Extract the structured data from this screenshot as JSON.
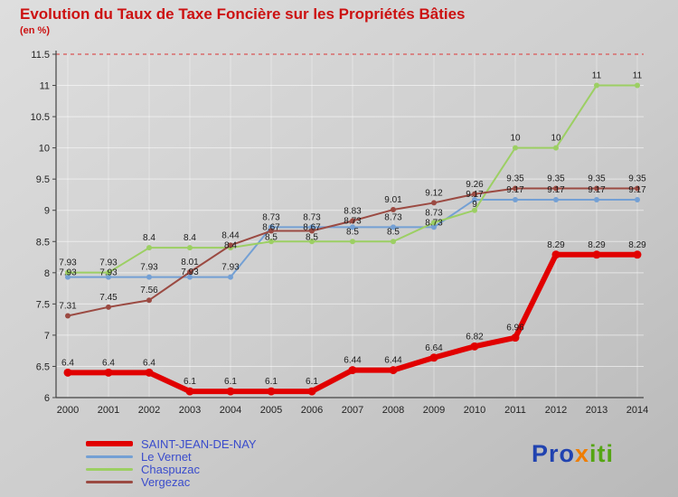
{
  "chart_data": {
    "type": "line",
    "title": "Evolution du Taux de Taxe Foncière sur les Propriétés Bâties",
    "subtitle": "(en %)",
    "x": [
      2000,
      2001,
      2002,
      2003,
      2004,
      2005,
      2006,
      2007,
      2008,
      2009,
      2010,
      2011,
      2012,
      2013,
      2014
    ],
    "ylim": [
      6,
      11.5
    ],
    "yticks": [
      6,
      6.5,
      7,
      7.5,
      8,
      8.5,
      9,
      9.5,
      10,
      10.5,
      11,
      11.5
    ],
    "grid": true,
    "legend_position": "bottom-left",
    "series": [
      {
        "name": "SAINT-JEAN-DE-NAY",
        "color": "#e10000",
        "thickness": 6,
        "values": [
          6.4,
          6.4,
          6.4,
          6.1,
          6.1,
          6.1,
          6.1,
          6.44,
          6.44,
          6.64,
          6.82,
          6.96,
          8.29,
          8.29,
          8.29
        ]
      },
      {
        "name": "Le Vernet",
        "color": "#74a0d4",
        "thickness": 2,
        "values": [
          7.93,
          7.93,
          7.93,
          7.93,
          7.93,
          8.73,
          8.73,
          8.73,
          8.73,
          8.73,
          9.17,
          9.17,
          9.17,
          9.17,
          9.17
        ]
      },
      {
        "name": "Chaspuzac",
        "color": "#9ccf63",
        "thickness": 2,
        "values": [
          7.93,
          7.93,
          8.4,
          8.4,
          8.4,
          8.5,
          8.5,
          8.5,
          8.5,
          8.73,
          9,
          10,
          10,
          11,
          11
        ]
      },
      {
        "name": "Vergezac",
        "color": "#9b4a42",
        "thickness": 2,
        "values": [
          7.31,
          7.45,
          7.56,
          8.01,
          8.44,
          8.67,
          8.67,
          8.83,
          9.01,
          9.12,
          9.26,
          9.35,
          9.35,
          9.35,
          9.35
        ]
      }
    ]
  },
  "style": {
    "title_color": "#cc1111",
    "legend_text_color": "#3a4ccc",
    "label_color": "#1c1c1c",
    "axis_color": "#444444",
    "grid_color": "rgba(255,255,255,0.55)",
    "grid_vertical_color": "rgba(255,255,255,0.35)",
    "top_dash_color": "#d96a6a"
  },
  "logo": {
    "pro": "Pro",
    "x": "x",
    "iti": "iti",
    "pro_color": "#2143b0",
    "x_color": "#ef7d00",
    "iti_color": "#55a513"
  }
}
